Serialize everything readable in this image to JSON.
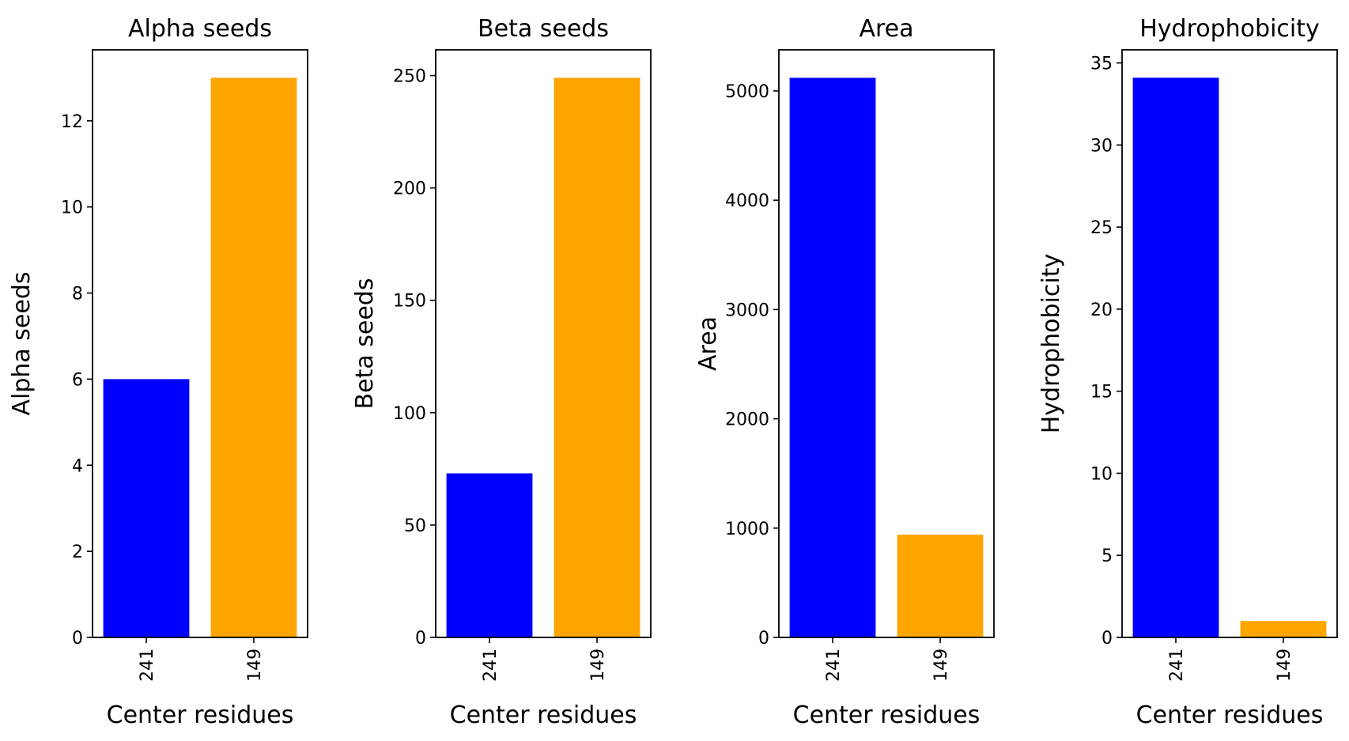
{
  "chart_data": [
    {
      "type": "bar",
      "title": "Alpha seeds",
      "xlabel": "Center residues",
      "ylabel": "Alpha seeds",
      "categories": [
        "241",
        "149"
      ],
      "values": [
        6,
        13
      ],
      "colors": [
        "#0000ff",
        "#ffa500"
      ],
      "ylim": [
        0,
        13.65
      ],
      "yticks": [
        0,
        2,
        4,
        6,
        8,
        10,
        12
      ],
      "grid": false
    },
    {
      "type": "bar",
      "title": "Beta seeds",
      "xlabel": "Center residues",
      "ylabel": "Beta seeds",
      "categories": [
        "241",
        "149"
      ],
      "values": [
        73,
        249
      ],
      "colors": [
        "#0000ff",
        "#ffa500"
      ],
      "ylim": [
        0,
        261.45
      ],
      "yticks": [
        0,
        50,
        100,
        150,
        200,
        250
      ],
      "grid": false
    },
    {
      "type": "bar",
      "title": "Area",
      "xlabel": "Center residues",
      "ylabel": "Area",
      "categories": [
        "241",
        "149"
      ],
      "values": [
        5120,
        940
      ],
      "colors": [
        "#0000ff",
        "#ffa500"
      ],
      "ylim": [
        0,
        5376
      ],
      "yticks": [
        0,
        1000,
        2000,
        3000,
        4000,
        5000
      ],
      "grid": false
    },
    {
      "type": "bar",
      "title": "Hydrophobicity",
      "xlabel": "Center residues",
      "ylabel": "Hydrophobicity",
      "categories": [
        "241",
        "149"
      ],
      "values": [
        34.1,
        1.0
      ],
      "colors": [
        "#0000ff",
        "#ffa500"
      ],
      "ylim": [
        0,
        35.8
      ],
      "yticks": [
        0,
        5,
        10,
        15,
        20,
        25,
        30,
        35
      ],
      "grid": false
    }
  ]
}
